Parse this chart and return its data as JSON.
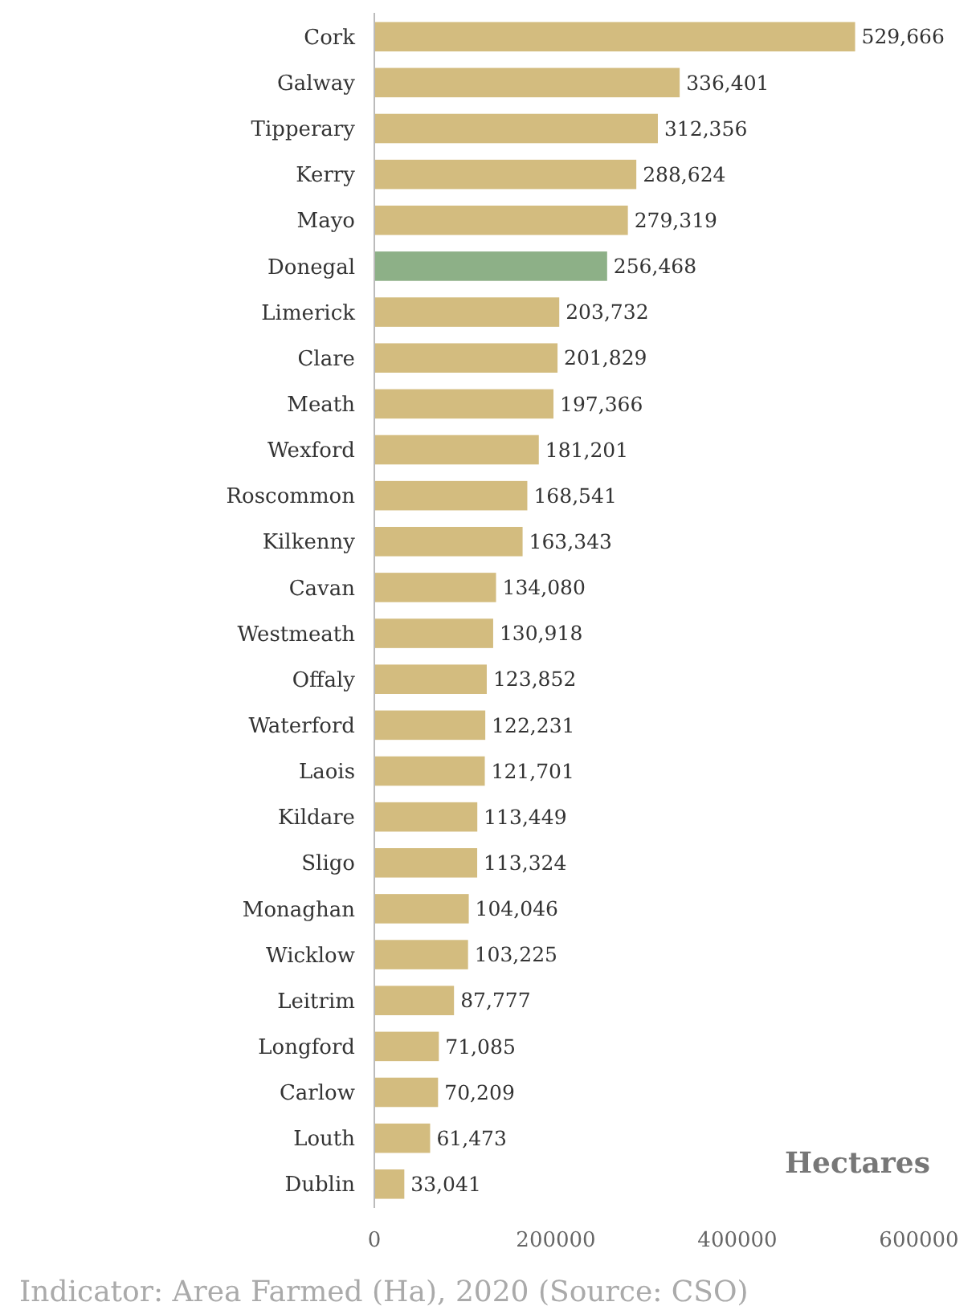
{
  "chart_data": {
    "type": "bar",
    "orientation": "horizontal",
    "categories": [
      "Cork",
      "Galway",
      "Tipperary",
      "Kerry",
      "Mayo",
      "Donegal",
      "Limerick",
      "Clare",
      "Meath",
      "Wexford",
      "Roscommon",
      "Kilkenny",
      "Cavan",
      "Westmeath",
      "Offaly",
      "Waterford",
      "Laois",
      "Kildare",
      "Sligo",
      "Monaghan",
      "Wicklow",
      "Leitrim",
      "Longford",
      "Carlow",
      "Louth",
      "Dublin"
    ],
    "values": [
      529666,
      336401,
      312356,
      288624,
      279319,
      256468,
      203732,
      201829,
      197366,
      181201,
      168541,
      163343,
      134080,
      130918,
      123852,
      122231,
      121701,
      113449,
      113324,
      104046,
      103225,
      87777,
      71085,
      70209,
      61473,
      33041
    ],
    "colors": [
      "#d3bc7f",
      "#d3bc7f",
      "#d3bc7f",
      "#d3bc7f",
      "#d3bc7f",
      "#8db087",
      "#d3bc7f",
      "#d3bc7f",
      "#d3bc7f",
      "#d3bc7f",
      "#d3bc7f",
      "#d3bc7f",
      "#d3bc7f",
      "#d3bc7f",
      "#d3bc7f",
      "#d3bc7f",
      "#d3bc7f",
      "#d3bc7f",
      "#d3bc7f",
      "#d3bc7f",
      "#d3bc7f",
      "#d3bc7f",
      "#d3bc7f",
      "#d3bc7f",
      "#d3bc7f",
      "#d3bc7f"
    ],
    "xlim": [
      0,
      600000
    ],
    "xticks": [
      0,
      200000,
      400000,
      600000
    ],
    "value_labels": [
      "529,666",
      "336,401",
      "312,356",
      "288,624",
      "279,319",
      "256,468",
      "203,732",
      "201,829",
      "197,366",
      "181,201",
      "168,541",
      "163,343",
      "134,080",
      "130,918",
      "123,852",
      "122,231",
      "121,701",
      "113,449",
      "113,324",
      "104,046",
      "103,225",
      "87,777",
      "71,085",
      "70,209",
      "61,473",
      "33,041"
    ],
    "annotations": [
      "Hectares",
      "Indicator: Area Farmed (Ha), 2020 (Source: CSO)"
    ]
  }
}
